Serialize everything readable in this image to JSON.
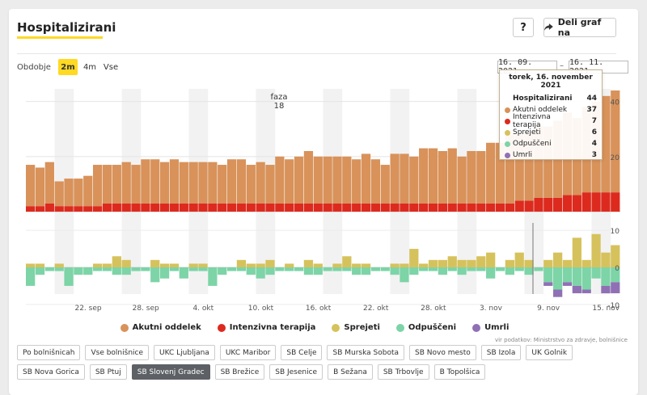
{
  "header": {
    "title": "Hospitalizirani",
    "help_label": "?",
    "share_label": "Deli graf na"
  },
  "period": {
    "label": "Obdobje",
    "options": [
      "2m",
      "4m",
      "Vse"
    ],
    "active": "2m",
    "date_from": "16. 09. 2021",
    "date_sep": "–",
    "date_to": "16. 11. 2021"
  },
  "annotation": {
    "label": "faza",
    "value": "18"
  },
  "tooltip": {
    "date": "torek, 16. november 2021",
    "rows": [
      {
        "label": "Hospitalizirani",
        "value": "44",
        "color": ""
      },
      {
        "label": "Akutni oddelek",
        "value": "37",
        "color": "#d8925a"
      },
      {
        "label": "Intenzivna terapija",
        "value": "7",
        "color": "#dd2a1e"
      },
      {
        "label": "Sprejeti",
        "value": "6",
        "color": "#d6c25c"
      },
      {
        "label": "Odpuščeni",
        "value": "4",
        "color": "#7dd4a7"
      },
      {
        "label": "Umrli",
        "value": "3",
        "color": "#9070b5"
      }
    ]
  },
  "legend": [
    {
      "label": "Akutni oddelek",
      "color": "#d8925a"
    },
    {
      "label": "Intenzivna terapija",
      "color": "#dd2a1e"
    },
    {
      "label": "Sprejeti",
      "color": "#d6c25c"
    },
    {
      "label": "Odpuščeni",
      "color": "#7dd4a7"
    },
    {
      "label": "Umrli",
      "color": "#9070b5"
    }
  ],
  "source": "vir podatkov: Ministrstvo za zdravje, bolnišnice",
  "filters": {
    "items": [
      "Po bolnišnicah",
      "Vse bolnišnice",
      "UKC Ljubljana",
      "UKC Maribor",
      "SB Celje",
      "SB Murska Sobota",
      "SB Novo mesto",
      "SB Izola",
      "UK Golnik",
      "SB Nova Gorica",
      "SB Ptuj",
      "SB Slovenj Gradec",
      "SB Brežice",
      "SB Jesenice",
      "B Sežana",
      "SB Trbovlje",
      "B Topolšica"
    ],
    "active": "SB Slovenj Gradec"
  },
  "chart_data": {
    "type": "bar",
    "x_tick_labels": [
      "22. sep",
      "28. sep",
      "4. okt",
      "10. okt",
      "16. okt",
      "22. okt",
      "28. okt",
      "3. nov",
      "9. nov",
      "15. nov"
    ],
    "x_tick_start_index": 6,
    "x_tick_step": 6,
    "top_y_ticks": [
      20,
      40
    ],
    "top_ylim": [
      0,
      44
    ],
    "bottom_y_ticks": [
      -10,
      0,
      10
    ],
    "bottom_ylim": [
      -13,
      12
    ],
    "series_top": [
      {
        "name": "Akutni oddelek",
        "color": "#d8925a",
        "values": [
          15,
          14,
          15,
          9,
          10,
          10,
          11,
          15,
          14,
          14,
          15,
          14,
          16,
          16,
          15,
          16,
          15,
          15,
          15,
          15,
          14,
          16,
          16,
          14,
          15,
          14,
          17,
          16,
          17,
          19,
          17,
          17,
          17,
          17,
          16,
          18,
          16,
          14,
          18,
          18,
          17,
          20,
          20,
          19,
          20,
          17,
          19,
          19,
          22,
          22,
          25,
          24,
          25,
          26,
          26,
          28,
          30,
          28,
          31,
          33,
          35,
          37
        ]
      },
      {
        "name": "Intenzivna terapija",
        "color": "#dd2a1e",
        "values": [
          2,
          2,
          3,
          2,
          2,
          2,
          2,
          2,
          3,
          3,
          3,
          3,
          3,
          3,
          3,
          3,
          3,
          3,
          3,
          3,
          3,
          3,
          3,
          3,
          3,
          3,
          3,
          3,
          3,
          3,
          3,
          3,
          3,
          3,
          3,
          3,
          3,
          3,
          3,
          3,
          3,
          3,
          3,
          3,
          3,
          3,
          3,
          3,
          3,
          3,
          3,
          4,
          4,
          5,
          5,
          5,
          6,
          6,
          7,
          7,
          7,
          7
        ]
      }
    ],
    "series_bottom": [
      {
        "name": "Sprejeti",
        "color": "#d6c25c",
        "values": [
          1,
          1,
          0,
          1,
          0,
          0,
          0,
          1,
          1,
          3,
          2,
          0,
          0,
          2,
          1,
          1,
          0,
          1,
          1,
          0,
          0,
          0,
          2,
          1,
          1,
          2,
          0,
          1,
          0,
          2,
          1,
          0,
          1,
          3,
          1,
          1,
          0,
          0,
          1,
          1,
          5,
          1,
          2,
          2,
          3,
          2,
          2,
          3,
          4,
          0,
          2,
          4,
          2,
          0,
          2,
          4,
          2,
          8,
          2,
          9,
          4,
          6
        ]
      },
      {
        "name": "Odpuščeni",
        "color": "#7dd4a7",
        "values": [
          -5,
          -2,
          -1,
          -1,
          -5,
          -2,
          -2,
          -1,
          -1,
          -2,
          -2,
          -1,
          -1,
          -4,
          -3,
          -1,
          -3,
          -1,
          -1,
          -5,
          -2,
          -1,
          -1,
          -2,
          -3,
          -2,
          -1,
          -1,
          -1,
          -2,
          -2,
          -1,
          -1,
          -1,
          -2,
          -2,
          -1,
          -1,
          -2,
          -4,
          -2,
          -1,
          -1,
          -2,
          -1,
          -2,
          -1,
          -1,
          -3,
          -1,
          -2,
          -1,
          -2,
          -1,
          -4,
          -6,
          -4,
          -5,
          -6,
          -3,
          -5,
          -4
        ]
      },
      {
        "name": "Umrli",
        "color": "#9070b5",
        "values": [
          0,
          0,
          0,
          0,
          0,
          0,
          0,
          0,
          0,
          0,
          0,
          0,
          0,
          0,
          0,
          0,
          0,
          0,
          0,
          0,
          0,
          0,
          0,
          0,
          0,
          0,
          0,
          0,
          0,
          0,
          0,
          0,
          0,
          0,
          0,
          0,
          0,
          0,
          0,
          0,
          0,
          0,
          0,
          0,
          0,
          0,
          0,
          0,
          0,
          0,
          0,
          0,
          0,
          0,
          -1,
          -2,
          -1,
          -2,
          -1,
          0,
          -2,
          -3
        ]
      }
    ]
  }
}
